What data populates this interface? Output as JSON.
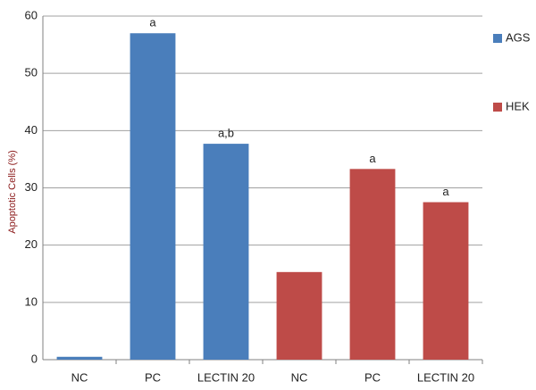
{
  "chart_data": {
    "type": "bar",
    "y_label": "Apoptotic Cells (%)",
    "categories": [
      "NC",
      "PC",
      "LECTIN 20",
      "NC",
      "PC",
      "LECTIN 20"
    ],
    "series": [
      {
        "name": "AGS",
        "color": "#4a7ebb",
        "values": [
          0.5,
          57,
          37.7,
          null,
          null,
          null
        ],
        "annotations": [
          null,
          "a",
          "a,b",
          null,
          null,
          null
        ]
      },
      {
        "name": "HEK",
        "color": "#be4b48",
        "values": [
          null,
          null,
          null,
          15.3,
          33.3,
          27.5
        ],
        "annotations": [
          null,
          null,
          null,
          null,
          "a",
          "a"
        ]
      }
    ],
    "ylim": [
      0,
      60
    ],
    "yticks": [
      0,
      10,
      20,
      30,
      40,
      50,
      60
    ],
    "grid": true
  }
}
